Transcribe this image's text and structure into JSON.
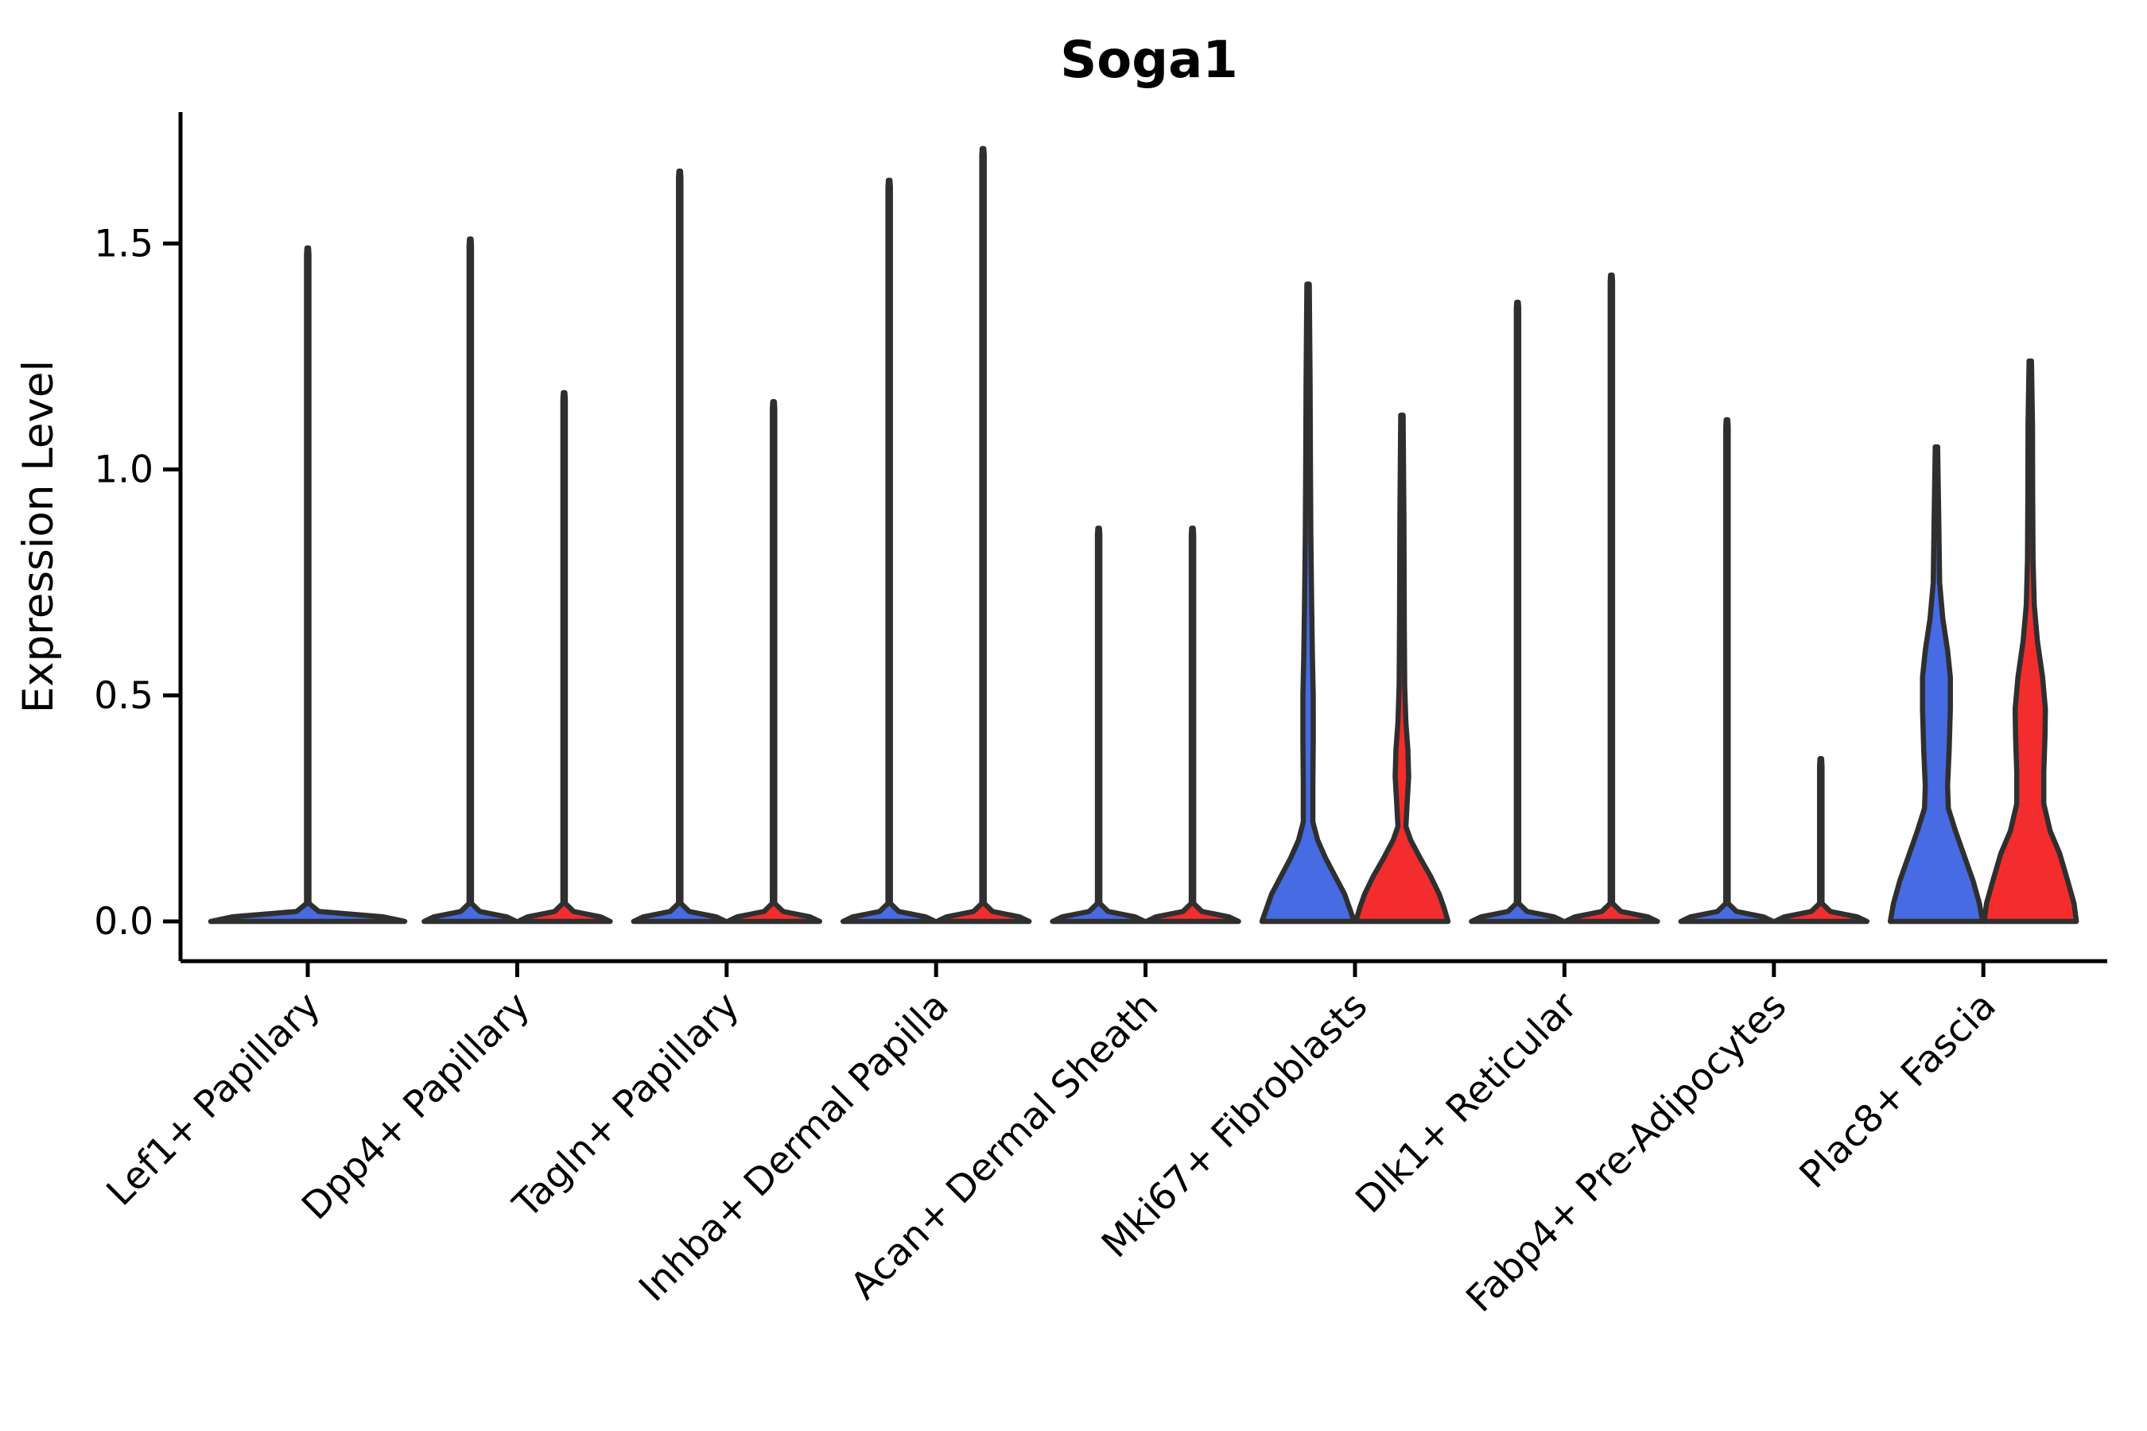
{
  "title": "Soga1",
  "axes": {
    "ylabel": "Expression Level",
    "ytick_labels": [
      "0.0",
      "0.5",
      "1.0",
      "1.5"
    ]
  },
  "colors": {
    "blue": "#466BE3",
    "red": "#F32D2D",
    "outline": "#2F2F2F",
    "axis": "#000000"
  },
  "chart_data": {
    "type": "violin",
    "title": "Soga1",
    "ylabel": "Expression Level",
    "ylim": [
      0,
      1.79
    ],
    "yticks": [
      0,
      0.5,
      1.0,
      1.5
    ],
    "grid": false,
    "legend": "none",
    "split_fills": [
      "blue",
      "red"
    ],
    "categories": [
      "Lef1+ Papillary",
      "Dpp4+ Papillary",
      "Tagln+ Papillary",
      "Inhba+ Dermal Papilla",
      "Acan+ Dermal Sheath",
      "Mki67+ Fibroblasts",
      "Dlk1+ Reticular",
      "Fabp4+ Pre-Adipocytes",
      "Plac8+ Fascia"
    ],
    "groups": [
      {
        "category": "Lef1+ Papillary",
        "violins": [
          {
            "color": "blue",
            "side": "center",
            "max_expression": 1.49,
            "profile": [
              [
                0,
                122
              ],
              [
                0.01,
                95
              ],
              [
                0.022,
                14
              ],
              [
                0.04,
                1.5
              ],
              [
                1.475,
                1.5
              ],
              [
                1.49,
                1
              ]
            ]
          }
        ]
      },
      {
        "category": "Dpp4+ Papillary",
        "violins": [
          {
            "color": "blue",
            "side": "left",
            "max_expression": 1.51,
            "profile": [
              [
                0,
                58
              ],
              [
                0.01,
                46
              ],
              [
                0.022,
                12
              ],
              [
                0.04,
                1.5
              ],
              [
                1.495,
                1.5
              ],
              [
                1.51,
                1
              ]
            ]
          },
          {
            "color": "red",
            "side": "right",
            "max_expression": 1.17,
            "profile": [
              [
                0,
                58
              ],
              [
                0.01,
                46
              ],
              [
                0.022,
                12
              ],
              [
                0.04,
                1.5
              ],
              [
                1.155,
                1.5
              ],
              [
                1.17,
                1
              ]
            ]
          }
        ]
      },
      {
        "category": "Tagln+ Papillary",
        "violins": [
          {
            "color": "blue",
            "side": "left",
            "max_expression": 1.66,
            "profile": [
              [
                0,
                58
              ],
              [
                0.01,
                46
              ],
              [
                0.022,
                12
              ],
              [
                0.04,
                1.5
              ],
              [
                1.645,
                1.5
              ],
              [
                1.66,
                1
              ]
            ]
          },
          {
            "color": "red",
            "side": "right",
            "max_expression": 1.15,
            "profile": [
              [
                0,
                58
              ],
              [
                0.01,
                46
              ],
              [
                0.022,
                12
              ],
              [
                0.04,
                1.5
              ],
              [
                1.135,
                1.5
              ],
              [
                1.15,
                1
              ]
            ]
          }
        ]
      },
      {
        "category": "Inhba+ Dermal Papilla",
        "violins": [
          {
            "color": "blue",
            "side": "left",
            "max_expression": 1.64,
            "profile": [
              [
                0,
                58
              ],
              [
                0.01,
                46
              ],
              [
                0.022,
                12
              ],
              [
                0.04,
                1.5
              ],
              [
                1.625,
                1.5
              ],
              [
                1.64,
                1
              ]
            ]
          },
          {
            "color": "red",
            "side": "right",
            "max_expression": 1.71,
            "profile": [
              [
                0,
                58
              ],
              [
                0.01,
                46
              ],
              [
                0.022,
                12
              ],
              [
                0.04,
                1.5
              ],
              [
                1.695,
                1.5
              ],
              [
                1.71,
                1
              ]
            ]
          }
        ]
      },
      {
        "category": "Acan+ Dermal Sheath",
        "violins": [
          {
            "color": "blue",
            "side": "left",
            "max_expression": 0.87,
            "profile": [
              [
                0,
                58
              ],
              [
                0.01,
                46
              ],
              [
                0.022,
                12
              ],
              [
                0.04,
                1.5
              ],
              [
                0.855,
                1.5
              ],
              [
                0.87,
                1
              ]
            ]
          },
          {
            "color": "red",
            "side": "right",
            "max_expression": 0.87,
            "profile": [
              [
                0,
                58
              ],
              [
                0.01,
                46
              ],
              [
                0.022,
                12
              ],
              [
                0.04,
                1.5
              ],
              [
                0.855,
                1.5
              ],
              [
                0.87,
                1
              ]
            ]
          }
        ]
      },
      {
        "category": "Mki67+ Fibroblasts",
        "violins": [
          {
            "color": "blue",
            "side": "left",
            "max_expression": 1.41,
            "profile": [
              [
                0,
                58
              ],
              [
                0.03,
                52
              ],
              [
                0.06,
                46
              ],
              [
                0.1,
                34
              ],
              [
                0.14,
                22
              ],
              [
                0.18,
                12
              ],
              [
                0.22,
                6
              ],
              [
                0.3,
                6
              ],
              [
                0.4,
                6.5
              ],
              [
                0.5,
                6.5
              ],
              [
                0.58,
                5.5
              ],
              [
                0.7,
                4.5
              ],
              [
                0.85,
                3.5
              ],
              [
                1.0,
                3
              ],
              [
                1.2,
                2.5
              ],
              [
                1.41,
                1.5
              ]
            ]
          },
          {
            "color": "red",
            "side": "right",
            "max_expression": 1.12,
            "profile": [
              [
                0,
                58
              ],
              [
                0.03,
                53
              ],
              [
                0.06,
                47
              ],
              [
                0.1,
                36
              ],
              [
                0.14,
                23
              ],
              [
                0.18,
                11
              ],
              [
                0.21,
                5
              ],
              [
                0.26,
                6.5
              ],
              [
                0.32,
                8.5
              ],
              [
                0.38,
                7.5
              ],
              [
                0.44,
                5
              ],
              [
                0.52,
                3.5
              ],
              [
                0.65,
                3
              ],
              [
                0.9,
                2.5
              ],
              [
                1.12,
                1.5
              ]
            ]
          }
        ]
      },
      {
        "category": "Dlk1+ Reticular",
        "violins": [
          {
            "color": "blue",
            "side": "left",
            "max_expression": 1.37,
            "profile": [
              [
                0,
                58
              ],
              [
                0.01,
                46
              ],
              [
                0.022,
                12
              ],
              [
                0.04,
                1.5
              ],
              [
                1.355,
                1.5
              ],
              [
                1.37,
                1
              ]
            ]
          },
          {
            "color": "red",
            "side": "right",
            "max_expression": 1.43,
            "profile": [
              [
                0,
                58
              ],
              [
                0.01,
                46
              ],
              [
                0.022,
                12
              ],
              [
                0.04,
                1.5
              ],
              [
                1.415,
                1.5
              ],
              [
                1.43,
                1
              ]
            ]
          }
        ]
      },
      {
        "category": "Fabp4+ Pre-Adipocytes",
        "violins": [
          {
            "color": "blue",
            "side": "left",
            "max_expression": 1.11,
            "profile": [
              [
                0,
                58
              ],
              [
                0.01,
                46
              ],
              [
                0.022,
                12
              ],
              [
                0.04,
                1.5
              ],
              [
                1.095,
                1.5
              ],
              [
                1.11,
                1
              ]
            ]
          },
          {
            "color": "red",
            "side": "right",
            "max_expression": 0.36,
            "profile": [
              [
                0,
                58
              ],
              [
                0.01,
                46
              ],
              [
                0.022,
                12
              ],
              [
                0.04,
                1.5
              ],
              [
                0.345,
                1.5
              ],
              [
                0.36,
                1
              ]
            ],
            "dots": [
              0.205,
              0.255,
              0.29,
              0.315
            ]
          }
        ]
      },
      {
        "category": "Plac8+ Fascia",
        "violins": [
          {
            "color": "blue",
            "side": "left",
            "max_expression": 1.05,
            "profile": [
              [
                0,
                58
              ],
              [
                0.04,
                54
              ],
              [
                0.09,
                46
              ],
              [
                0.14,
                36
              ],
              [
                0.2,
                24
              ],
              [
                0.25,
                15
              ],
              [
                0.3,
                14
              ],
              [
                0.38,
                16
              ],
              [
                0.47,
                17.5
              ],
              [
                0.54,
                17.5
              ],
              [
                0.6,
                14
              ],
              [
                0.67,
                8
              ],
              [
                0.75,
                4
              ],
              [
                0.88,
                3
              ],
              [
                1.05,
                1.5
              ]
            ]
          },
          {
            "color": "red",
            "side": "right",
            "max_expression": 1.24,
            "profile": [
              [
                0,
                58
              ],
              [
                0.04,
                55
              ],
              [
                0.09,
                47
              ],
              [
                0.15,
                37
              ],
              [
                0.2,
                25
              ],
              [
                0.26,
                17
              ],
              [
                0.33,
                17
              ],
              [
                0.41,
                18.5
              ],
              [
                0.47,
                19
              ],
              [
                0.54,
                15.5
              ],
              [
                0.62,
                9
              ],
              [
                0.7,
                5
              ],
              [
                0.8,
                3.5
              ],
              [
                0.95,
                3
              ],
              [
                1.1,
                2.8
              ],
              [
                1.24,
                1.5
              ]
            ]
          }
        ]
      }
    ]
  }
}
